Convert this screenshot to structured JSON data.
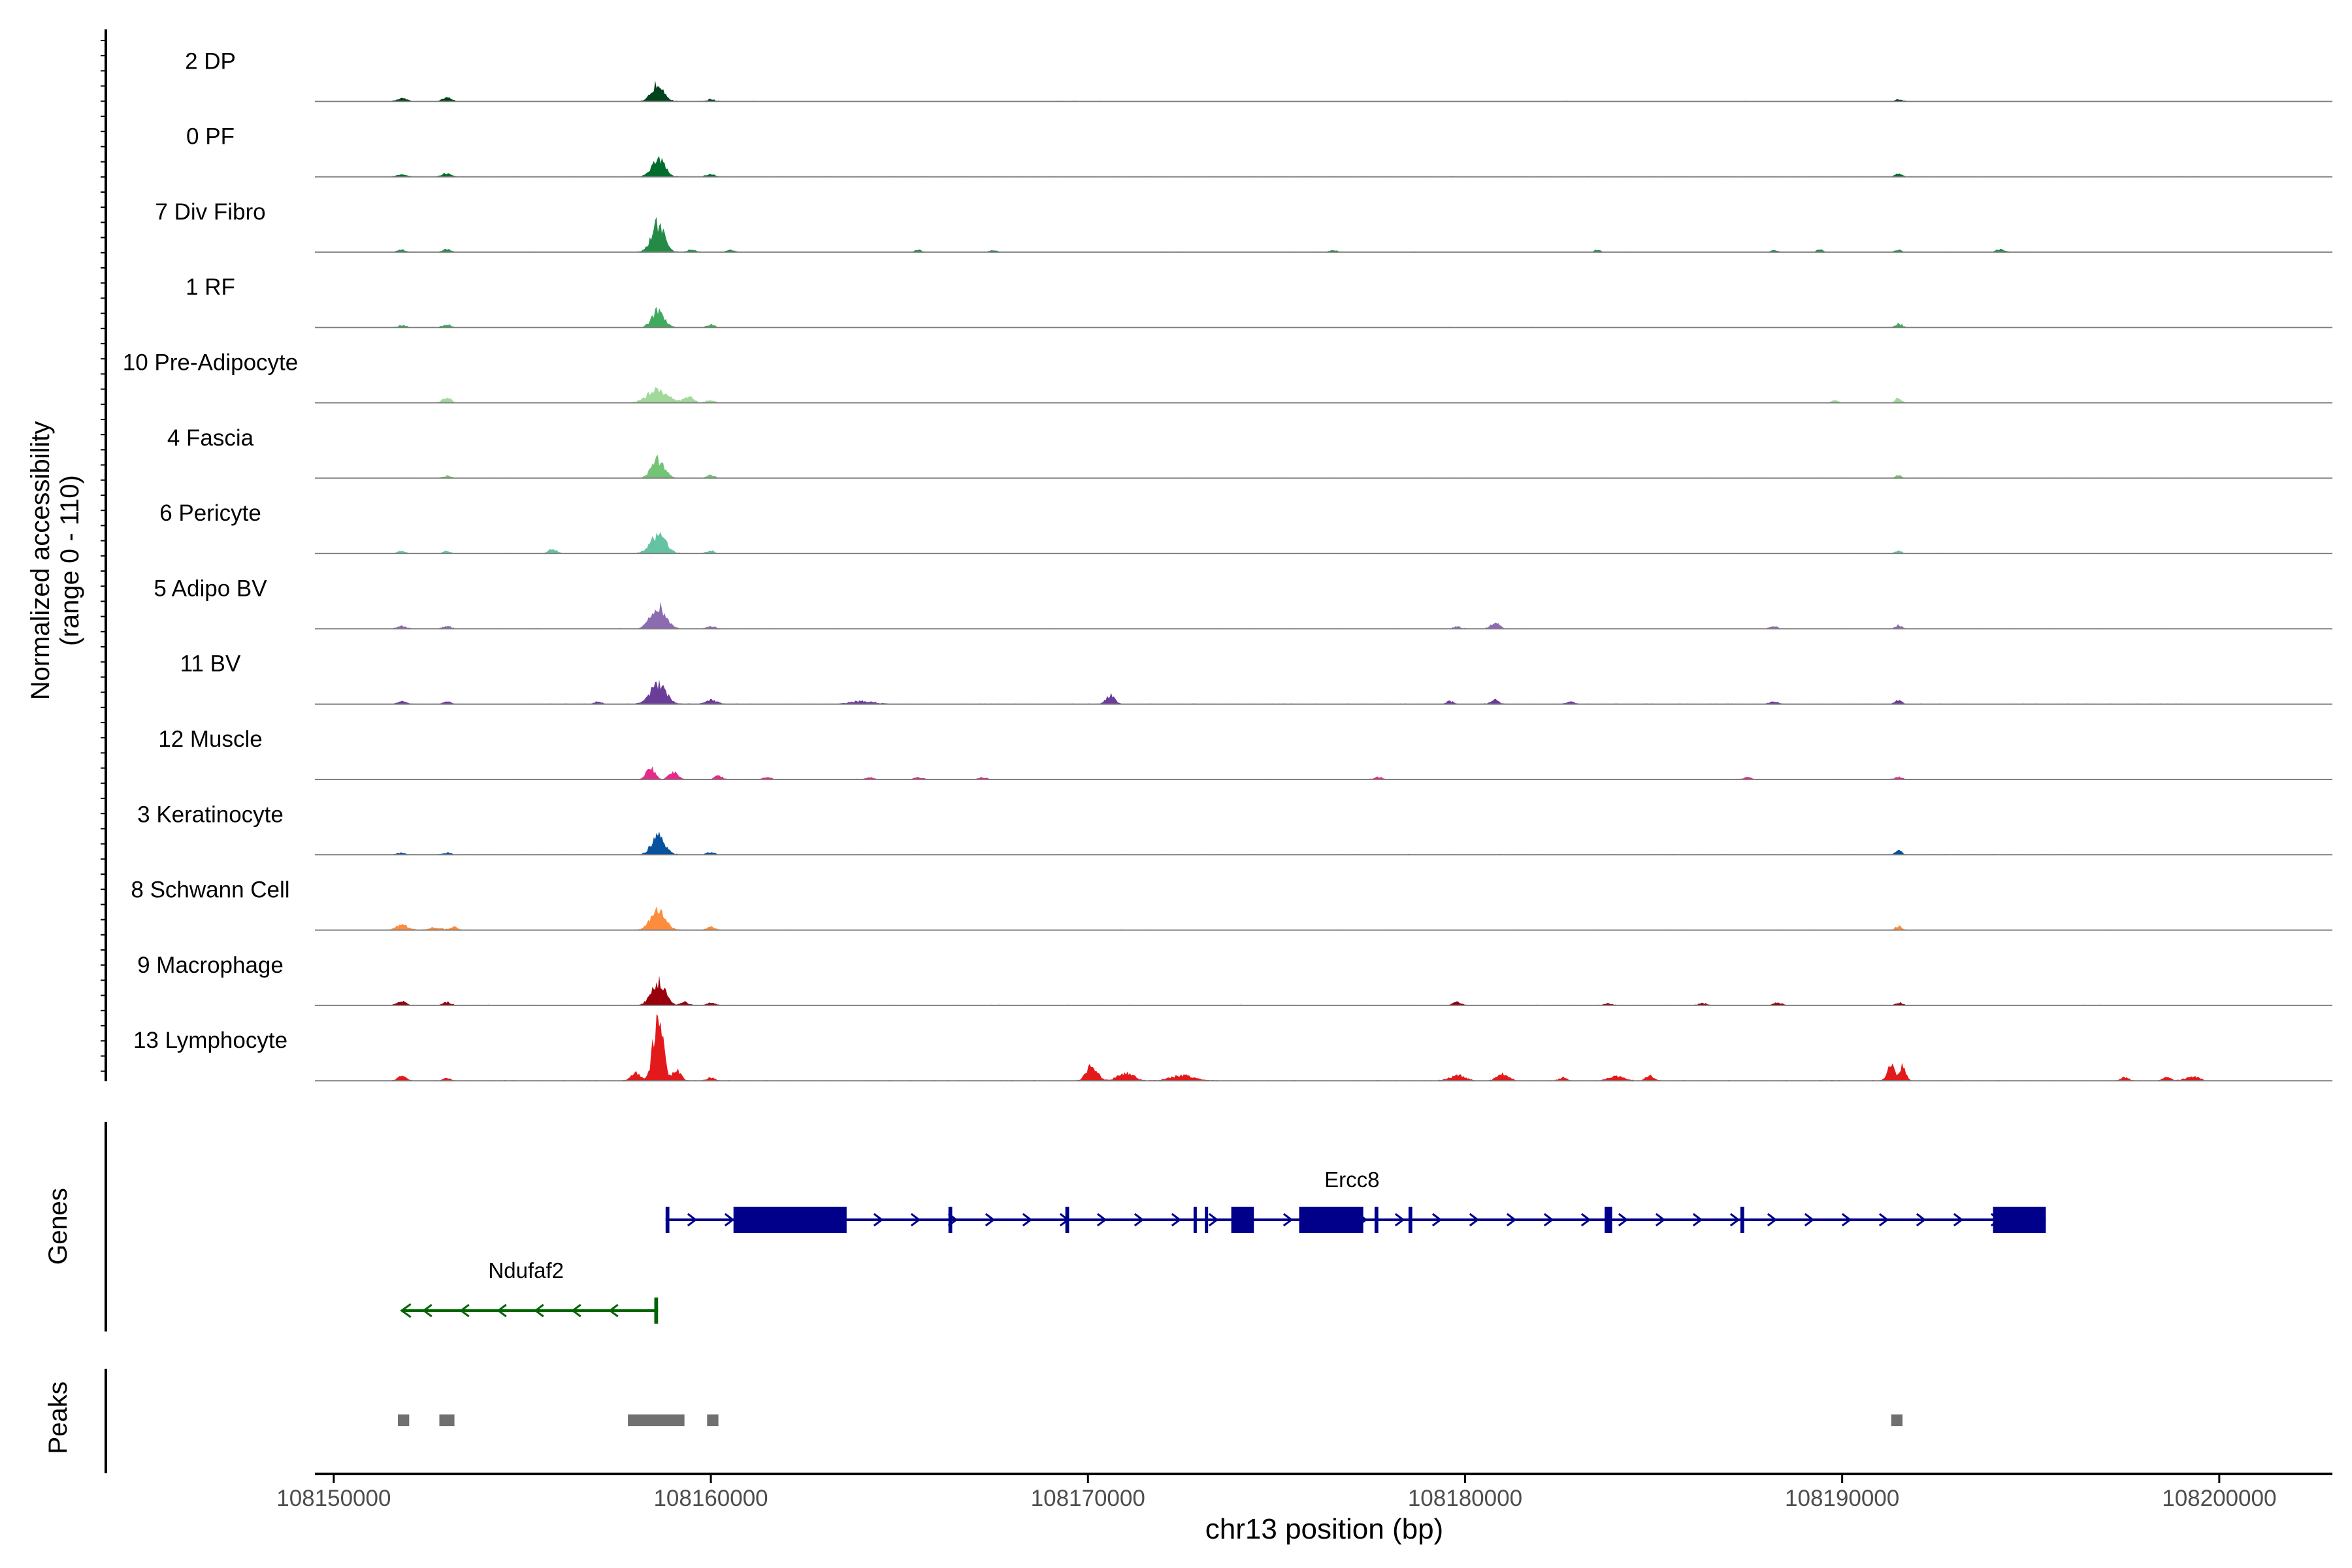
{
  "chart_data": {
    "type": "area",
    "title": "",
    "xlabel": "chr13 position (bp)",
    "ylabel": "Normalized accessibility",
    "ylabel_sub": "(range 0 - 110)",
    "xlim": [
      108149500,
      108203000
    ],
    "ylim": [
      0,
      110
    ],
    "xticks": [
      108150000,
      108160000,
      108170000,
      108180000,
      108190000,
      108200000
    ],
    "series": [
      {
        "name": "2 DP",
        "color": "#00441b",
        "peaks": [
          [
            108151800,
            5,
            120
          ],
          [
            108153000,
            5,
            120
          ],
          [
            108158600,
            28,
            160
          ],
          [
            108160000,
            3,
            100
          ],
          [
            108191500,
            3,
            80
          ]
        ]
      },
      {
        "name": "0 PF",
        "color": "#006d2c",
        "peaks": [
          [
            108151800,
            4,
            120
          ],
          [
            108153000,
            5,
            120
          ],
          [
            108158600,
            28,
            170
          ],
          [
            108160000,
            4,
            100
          ],
          [
            108191500,
            5,
            80
          ]
        ]
      },
      {
        "name": "7 Div Fibro",
        "color": "#238b45",
        "peaks": [
          [
            108151800,
            3,
            100
          ],
          [
            108153000,
            4,
            100
          ],
          [
            108158600,
            42,
            170
          ],
          [
            108159500,
            4,
            90
          ],
          [
            108160500,
            3,
            90
          ],
          [
            108165500,
            3,
            80
          ],
          [
            108167500,
            3,
            80
          ],
          [
            108176500,
            3,
            80
          ],
          [
            108183500,
            3,
            80
          ],
          [
            108188200,
            3,
            80
          ],
          [
            108189400,
            3,
            80
          ],
          [
            108191500,
            3,
            80
          ],
          [
            108194200,
            4,
            100
          ]
        ]
      },
      {
        "name": "1 RF",
        "color": "#41ab5d",
        "peaks": [
          [
            108151800,
            3,
            100
          ],
          [
            108153000,
            4,
            100
          ],
          [
            108158600,
            25,
            160
          ],
          [
            108160000,
            4,
            100
          ],
          [
            108191500,
            6,
            80
          ]
        ]
      },
      {
        "name": "10 Pre-Adipocyte",
        "color": "#a1d99b",
        "peaks": [
          [
            108153000,
            8,
            100
          ],
          [
            108158600,
            20,
            260
          ],
          [
            108159400,
            10,
            120
          ],
          [
            108160000,
            4,
            100
          ],
          [
            108189800,
            3,
            80
          ],
          [
            108191500,
            7,
            80
          ]
        ]
      },
      {
        "name": "4 Fascia",
        "color": "#74c476",
        "peaks": [
          [
            108153000,
            3,
            100
          ],
          [
            108158600,
            27,
            170
          ],
          [
            108160000,
            4,
            100
          ],
          [
            108191500,
            4,
            80
          ]
        ]
      },
      {
        "name": "6 Pericyte",
        "color": "#66c2a4",
        "peaks": [
          [
            108151800,
            3,
            100
          ],
          [
            108153000,
            3,
            100
          ],
          [
            108155800,
            6,
            100
          ],
          [
            108158600,
            28,
            200
          ],
          [
            108160000,
            4,
            100
          ],
          [
            108191500,
            4,
            80
          ]
        ]
      },
      {
        "name": "5 Adipo BV",
        "color": "#8c6bb1",
        "peaks": [
          [
            108151800,
            4,
            100
          ],
          [
            108153000,
            4,
            100
          ],
          [
            108158600,
            35,
            190
          ],
          [
            108160000,
            4,
            100
          ],
          [
            108180800,
            8,
            120
          ],
          [
            108179800,
            3,
            100
          ],
          [
            108188200,
            4,
            100
          ],
          [
            108191500,
            5,
            80
          ]
        ]
      },
      {
        "name": "11 BV",
        "color": "#6a3d9a",
        "peaks": [
          [
            108151800,
            4,
            100
          ],
          [
            108153000,
            4,
            100
          ],
          [
            108158600,
            30,
            210
          ],
          [
            108160000,
            6,
            150
          ],
          [
            108157000,
            3,
            100
          ],
          [
            108170600,
            14,
            110
          ],
          [
            108164000,
            4,
            300
          ],
          [
            108179600,
            4,
            100
          ],
          [
            108180800,
            6,
            100
          ],
          [
            108182800,
            3,
            100
          ],
          [
            108188200,
            4,
            100
          ],
          [
            108191500,
            6,
            80
          ]
        ]
      },
      {
        "name": "12 Muscle",
        "color": "#e7298a",
        "peaks": [
          [
            108158400,
            18,
            110
          ],
          [
            108159000,
            12,
            110
          ],
          [
            108160200,
            5,
            100
          ],
          [
            108161500,
            3,
            100
          ],
          [
            108164200,
            3,
            100
          ],
          [
            108165500,
            3,
            100
          ],
          [
            108167200,
            3,
            100
          ],
          [
            108177700,
            3,
            100
          ],
          [
            108187500,
            3,
            100
          ],
          [
            108191500,
            3,
            100
          ]
        ]
      },
      {
        "name": "3 Keratinocyte",
        "color": "#08519c",
        "peaks": [
          [
            108151800,
            3,
            100
          ],
          [
            108153000,
            3,
            100
          ],
          [
            108158600,
            30,
            170
          ],
          [
            108160000,
            4,
            100
          ],
          [
            108191500,
            7,
            80
          ]
        ]
      },
      {
        "name": "8 Schwann Cell",
        "color": "#fd8d3c",
        "peaks": [
          [
            108151800,
            8,
            150
          ],
          [
            108152700,
            4,
            150
          ],
          [
            108153200,
            4,
            100
          ],
          [
            108158600,
            30,
            190
          ],
          [
            108160000,
            5,
            100
          ],
          [
            108191500,
            6,
            80
          ]
        ]
      },
      {
        "name": "9 Macrophage",
        "color": "#99000d",
        "peaks": [
          [
            108151800,
            7,
            100
          ],
          [
            108153000,
            5,
            100
          ],
          [
            108158600,
            36,
            180
          ],
          [
            108159300,
            5,
            100
          ],
          [
            108160000,
            4,
            100
          ],
          [
            108179800,
            5,
            100
          ],
          [
            108183800,
            3,
            100
          ],
          [
            108186300,
            3,
            100
          ],
          [
            108188300,
            4,
            100
          ],
          [
            108191500,
            4,
            80
          ]
        ]
      },
      {
        "name": "13 Lymphocyte",
        "color": "#e31a1c",
        "peaks": [
          [
            108151800,
            8,
            100
          ],
          [
            108153000,
            4,
            100
          ],
          [
            108158600,
            95,
            130
          ],
          [
            108158000,
            12,
            120
          ],
          [
            108159100,
            15,
            110
          ],
          [
            108160000,
            5,
            100
          ],
          [
            108170100,
            25,
            140
          ],
          [
            108171000,
            12,
            200
          ],
          [
            108172500,
            8,
            300
          ],
          [
            108181000,
            10,
            150
          ],
          [
            108179800,
            8,
            200
          ],
          [
            108182600,
            5,
            100
          ],
          [
            108184000,
            6,
            200
          ],
          [
            108184900,
            8,
            100
          ],
          [
            108191300,
            22,
            100
          ],
          [
            108191600,
            22,
            80
          ],
          [
            108197500,
            5,
            100
          ],
          [
            108198600,
            5,
            100
          ],
          [
            108199300,
            6,
            200
          ]
        ]
      }
    ],
    "genes": [
      {
        "name": "Ercc8",
        "strand": "+",
        "color": "#00008b",
        "start": 108158800,
        "end": 108195400,
        "exons": [
          [
            108158800,
            108158900
          ],
          [
            108160600,
            108163600
          ],
          [
            108166300,
            108166400
          ],
          [
            108169400,
            108169500
          ],
          [
            108172800,
            108172850
          ],
          [
            108173100,
            108173150
          ],
          [
            108173800,
            108174400
          ],
          [
            108175600,
            108177300
          ],
          [
            108177600,
            108177700
          ],
          [
            108178500,
            108178600
          ],
          [
            108183700,
            108183900
          ],
          [
            108187300,
            108187400
          ],
          [
            108194000,
            108195400
          ]
        ]
      },
      {
        "name": "Ndufaf2",
        "strand": "-",
        "color": "#006400",
        "start": 108151800,
        "end": 108158600,
        "exons": [
          [
            108158500,
            108158600
          ]
        ]
      }
    ],
    "peaks_track": [
      [
        108151700,
        108152000
      ],
      [
        108152800,
        108153200
      ],
      [
        108157800,
        108159300
      ],
      [
        108159900,
        108160200
      ],
      [
        108191300,
        108191600
      ]
    ],
    "panel_labels": {
      "genes": "Genes",
      "peaks": "Peaks"
    }
  }
}
